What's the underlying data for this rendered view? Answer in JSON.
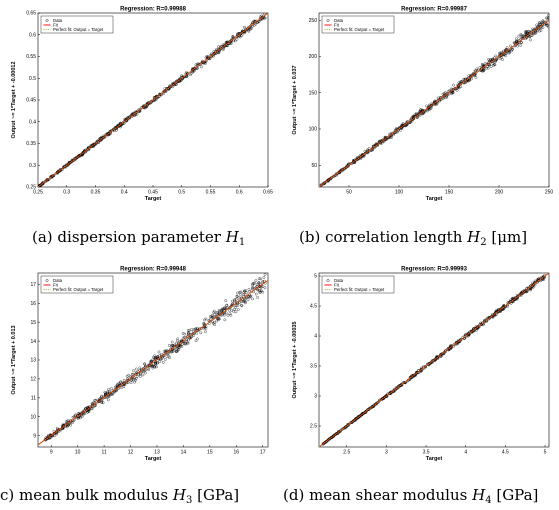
{
  "figure": {
    "captions": [
      {
        "prefix": "(a) dispersion parameter ",
        "var": "H",
        "sub": "1",
        "suffix": ""
      },
      {
        "prefix": "(b) correlation length ",
        "var": "H",
        "sub": "2",
        "suffix": " [μm]"
      },
      {
        "prefix": "c) mean bulk modulus ",
        "var": "H",
        "sub": "3",
        "suffix": " [GPa]"
      },
      {
        "prefix": "(d) mean shear modulus ",
        "var": "H",
        "sub": "4",
        "suffix": " [GPa]"
      }
    ]
  },
  "chart_data": [
    {
      "type": "scatter",
      "title": "Regression: R=0.99988",
      "xlabel": "Target",
      "ylabel": "Output ~= 1*Target + -0.00012",
      "xlim": [
        0.25,
        0.65
      ],
      "ylim": [
        0.25,
        0.65
      ],
      "xticks": [
        "0.25",
        "0.3",
        "0.35",
        "0.4",
        "0.45",
        "0.5",
        "0.55",
        "0.6",
        "0.65"
      ],
      "yticks": [
        "0.25",
        "0.3",
        "0.35",
        "0.4",
        "0.45",
        "0.5",
        "0.55",
        "0.6",
        "0.65"
      ],
      "legend": [
        "Data",
        "Fit",
        "Perfect fit: Output = Target"
      ],
      "legend_position": "top-left",
      "fit": {
        "slope": 1,
        "intercept": -0.00012
      },
      "data_range": [
        0.25,
        0.645
      ],
      "spread": [
        0.001,
        0.004
      ],
      "colors": {
        "data": "#000000",
        "fit": "#ff0000",
        "perfect": "#9aa81a"
      }
    },
    {
      "type": "scatter",
      "title": "Regression: R=0.99987",
      "xlabel": "Target",
      "ylabel": "Output ~= 1*Target + 0.037",
      "xlim": [
        20,
        250
      ],
      "ylim": [
        20,
        260
      ],
      "xticks": [
        "50",
        "100",
        "150",
        "200",
        "250"
      ],
      "yticks": [
        "50",
        "100",
        "150",
        "200",
        "250"
      ],
      "legend": [
        "Data",
        "Fit",
        "Perfect fit: Output = Target"
      ],
      "legend_position": "top-left",
      "fit": {
        "slope": 1,
        "intercept": 0.037
      },
      "data_range": [
        22,
        250
      ],
      "spread": [
        0.5,
        4
      ],
      "colors": {
        "data": "#000000",
        "fit": "#ff0000",
        "perfect": "#9aa81a"
      }
    },
    {
      "type": "scatter",
      "title": "Regression: R=0.99948",
      "xlabel": "Target",
      "ylabel": "Output ~= 1*Target + 0.013",
      "xlim": [
        8.5,
        17.2
      ],
      "ylim": [
        8.4,
        17.6
      ],
      "xticks": [
        "9",
        "10",
        "11",
        "12",
        "13",
        "14",
        "15",
        "16",
        "17"
      ],
      "yticks": [
        "9",
        "10",
        "11",
        "12",
        "13",
        "14",
        "15",
        "16",
        "17"
      ],
      "legend": [
        "Data",
        "Fit",
        "Perfect fit: Output = Target"
      ],
      "legend_position": "top-left",
      "fit": {
        "slope": 1,
        "intercept": 0.013
      },
      "data_range": [
        8.7,
        17.1
      ],
      "spread": [
        0.05,
        0.25
      ],
      "colors": {
        "data": "#000000",
        "fit": "#ff0000",
        "perfect": "#9aa81a"
      }
    },
    {
      "type": "scatter",
      "title": "Regression: R=0.99993",
      "xlabel": "Target",
      "ylabel": "Output ~= 1*Target + -0.00035",
      "xlim": [
        2.15,
        5.05
      ],
      "ylim": [
        2.15,
        5.05
      ],
      "xticks": [
        "2.5",
        "3",
        "3.5",
        "4",
        "4.5",
        "5"
      ],
      "yticks": [
        "2.5",
        "3",
        "3.5",
        "4",
        "4.5",
        "5"
      ],
      "legend": [
        "Data",
        "Fit",
        "Perfect fit: Output = Target"
      ],
      "legend_position": "top-left",
      "fit": {
        "slope": 1,
        "intercept": -0.00035
      },
      "data_range": [
        2.2,
        5.0
      ],
      "spread": [
        0.004,
        0.02
      ],
      "colors": {
        "data": "#000000",
        "fit": "#ff0000",
        "perfect": "#9aa81a"
      }
    }
  ]
}
